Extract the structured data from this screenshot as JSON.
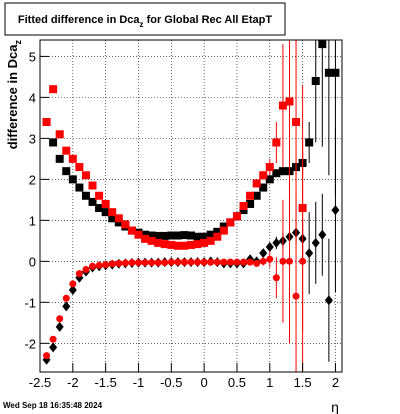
{
  "chart_data": {
    "type": "scatter",
    "title": [
      "Fitted difference in Dca",
      "z",
      " for Global Rec All EtapT"
    ],
    "ylabel": [
      "difference in Dca",
      "z"
    ],
    "xlabel": "η",
    "timestamp": "Wed Sep 18 16:35:48 2024",
    "xlim": [
      -2.5,
      2.1
    ],
    "ylim": [
      -2.7,
      5.4
    ],
    "xticks": [
      -2.5,
      -2,
      -1.5,
      -1,
      -0.5,
      0,
      0.5,
      1,
      1.5,
      2
    ],
    "yticks": [
      -2,
      -1,
      0,
      1,
      2,
      3,
      4,
      5
    ],
    "grid": true,
    "x": [
      -2.4,
      -2.3,
      -2.2,
      -2.1,
      -2.0,
      -1.9,
      -1.8,
      -1.7,
      -1.6,
      -1.5,
      -1.4,
      -1.3,
      -1.2,
      -1.1,
      -1.0,
      -0.9,
      -0.8,
      -0.7,
      -0.6,
      -0.5,
      -0.4,
      -0.3,
      -0.2,
      -0.1,
      0.0,
      0.1,
      0.2,
      0.3,
      0.4,
      0.5,
      0.6,
      0.7,
      0.8,
      0.9,
      1.0,
      1.1,
      1.2,
      1.3,
      1.4,
      1.5,
      1.6,
      1.7,
      1.8,
      1.9,
      2.0
    ],
    "series": [
      {
        "color": "#000000",
        "marker": "square",
        "values": [
          3.4,
          2.9,
          2.5,
          2.2,
          2.0,
          1.8,
          1.6,
          1.45,
          1.3,
          1.2,
          1.05,
          0.95,
          0.85,
          0.75,
          0.7,
          0.65,
          0.63,
          0.62,
          0.62,
          0.63,
          0.63,
          0.64,
          0.63,
          0.6,
          0.6,
          0.65,
          0.72,
          0.85,
          0.95,
          1.1,
          1.25,
          1.4,
          1.6,
          1.8,
          2.0,
          2.15,
          2.2,
          2.2,
          2.3,
          2.4,
          2.9,
          4.4,
          5.3,
          4.6,
          4.6
        ],
        "errors": [
          0.03,
          0.03,
          0.03,
          0.03,
          0.03,
          0.03,
          0.03,
          0.03,
          0.03,
          0.03,
          0.03,
          0.03,
          0.03,
          0.03,
          0.03,
          0.03,
          0.03,
          0.03,
          0.03,
          0.03,
          0.03,
          0.03,
          0.03,
          0.03,
          0.03,
          0.03,
          0.03,
          0.03,
          0.03,
          0.03,
          0.03,
          0.03,
          0.03,
          0.03,
          0.03,
          0.05,
          0.1,
          0.15,
          0.2,
          0.3,
          0.5,
          1.5,
          2.5,
          2.5,
          3.0
        ]
      },
      {
        "color": "#ff0000",
        "marker": "square",
        "values": [
          3.4,
          4.2,
          3.1,
          2.7,
          2.5,
          2.3,
          2.1,
          1.85,
          1.6,
          1.4,
          1.2,
          1.05,
          0.9,
          0.75,
          0.65,
          0.55,
          0.5,
          0.45,
          0.42,
          0.4,
          0.38,
          0.38,
          0.4,
          0.42,
          0.45,
          0.5,
          0.6,
          0.75,
          0.95,
          1.1,
          1.35,
          1.6,
          1.9,
          2.1,
          2.3,
          2.9,
          3.8,
          3.9,
          3.4,
          1.3,
          null,
          null,
          null,
          null,
          null
        ],
        "errors": [
          0.03,
          0.03,
          0.03,
          0.03,
          0.03,
          0.03,
          0.03,
          0.03,
          0.03,
          0.03,
          0.03,
          0.03,
          0.03,
          0.03,
          0.03,
          0.03,
          0.03,
          0.03,
          0.03,
          0.03,
          0.03,
          0.03,
          0.03,
          0.03,
          0.03,
          0.03,
          0.03,
          0.03,
          0.03,
          0.03,
          0.03,
          0.03,
          0.05,
          0.1,
          0.2,
          0.5,
          1.5,
          3.0,
          3.0,
          3.0,
          null,
          null,
          null,
          null,
          null
        ]
      },
      {
        "color": "#000000",
        "marker": "diamond",
        "values": [
          -2.4,
          -2.1,
          -1.6,
          -1.1,
          -0.7,
          -0.4,
          -0.25,
          -0.15,
          -0.12,
          -0.1,
          -0.08,
          -0.06,
          -0.05,
          -0.04,
          -0.03,
          -0.03,
          -0.03,
          -0.03,
          -0.02,
          -0.02,
          -0.02,
          -0.02,
          -0.02,
          -0.02,
          -0.02,
          0.0,
          -0.02,
          -0.05,
          -0.05,
          -0.05,
          -0.05,
          0.05,
          0.0,
          0.2,
          0.35,
          0.45,
          0.5,
          0.6,
          0.7,
          0.55,
          0.2,
          0.45,
          0.65,
          -0.95,
          1.25
        ],
        "errors": [
          0.03,
          0.03,
          0.03,
          0.03,
          0.03,
          0.03,
          0.03,
          0.03,
          0.03,
          0.03,
          0.03,
          0.03,
          0.03,
          0.03,
          0.03,
          0.03,
          0.03,
          0.03,
          0.03,
          0.03,
          0.03,
          0.03,
          0.03,
          0.03,
          0.03,
          0.03,
          0.03,
          0.03,
          0.03,
          0.03,
          0.03,
          0.05,
          0.05,
          0.1,
          0.1,
          0.15,
          0.2,
          0.2,
          0.3,
          0.5,
          1.0,
          1.0,
          1.0,
          1.5,
          2.0
        ]
      },
      {
        "color": "#ff0000",
        "marker": "circle",
        "values": [
          -2.3,
          -1.9,
          -1.4,
          -0.9,
          -0.55,
          -0.3,
          -0.2,
          -0.12,
          -0.1,
          -0.08,
          -0.06,
          -0.05,
          -0.04,
          -0.03,
          -0.03,
          -0.03,
          -0.03,
          -0.03,
          -0.03,
          -0.02,
          -0.02,
          -0.02,
          -0.02,
          -0.02,
          -0.02,
          -0.02,
          -0.02,
          -0.02,
          -0.02,
          -0.02,
          -0.02,
          -0.02,
          -0.05,
          0.0,
          0.05,
          -0.4,
          0.0,
          0.0,
          -0.85,
          0.0,
          null,
          null,
          null,
          null,
          null
        ],
        "errors": [
          0.03,
          0.03,
          0.03,
          0.03,
          0.03,
          0.03,
          0.03,
          0.03,
          0.03,
          0.03,
          0.03,
          0.03,
          0.03,
          0.03,
          0.03,
          0.03,
          0.03,
          0.03,
          0.03,
          0.03,
          0.03,
          0.03,
          0.03,
          0.03,
          0.03,
          0.03,
          0.03,
          0.03,
          0.03,
          0.03,
          0.03,
          0.03,
          0.05,
          0.1,
          0.2,
          0.5,
          1.5,
          2.0,
          2.5,
          3.0,
          null,
          null,
          null,
          null,
          null
        ]
      }
    ]
  }
}
